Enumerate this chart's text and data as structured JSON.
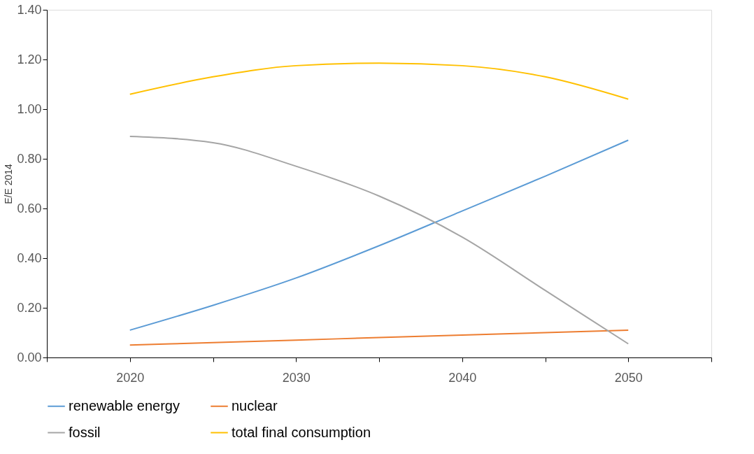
{
  "chart_data": {
    "type": "line",
    "ylabel": "E/E 2014",
    "x": [
      2020,
      2025,
      2030,
      2035,
      2040,
      2045,
      2050
    ],
    "series": [
      {
        "name": "renewable energy",
        "color": "#5b9bd5",
        "values": [
          0.11,
          0.21,
          0.32,
          0.45,
          0.59,
          0.73,
          0.875
        ]
      },
      {
        "name": "nuclear",
        "color": "#ed7d31",
        "values": [
          0.05,
          0.06,
          0.07,
          0.08,
          0.09,
          0.1,
          0.11
        ]
      },
      {
        "name": "fossil",
        "color": "#a5a5a5",
        "values": [
          0.89,
          0.865,
          0.77,
          0.65,
          0.485,
          0.27,
          0.055
        ]
      },
      {
        "name": "total final consumption",
        "color": "#ffc000",
        "values": [
          1.06,
          1.13,
          1.175,
          1.185,
          1.175,
          1.13,
          1.04
        ]
      }
    ],
    "xlim": [
      2015,
      2055
    ],
    "xticks": [
      {
        "value": 2015,
        "label": null
      },
      2020,
      {
        "value": 2025,
        "label": null
      },
      2030,
      {
        "value": 2035,
        "label": null
      },
      2040,
      {
        "value": 2045,
        "label": null
      },
      2050,
      {
        "value": 2055,
        "label": null
      }
    ],
    "ylim": [
      0,
      1.4
    ],
    "yticks": [
      {
        "value": 0,
        "label": "0.00"
      },
      {
        "value": 0.2,
        "label": "0.20"
      },
      {
        "value": 0.4,
        "label": "0.40"
      },
      {
        "value": 0.6,
        "label": "0.60"
      },
      {
        "value": 0.8,
        "label": "0.80"
      },
      {
        "value": 1.0,
        "label": "1.00"
      },
      {
        "value": 1.2,
        "label": "1.20"
      },
      {
        "value": 1.4,
        "label": "1.40"
      }
    ],
    "grid": false,
    "legend": "bottom",
    "marker": "none",
    "line_style": "solid"
  }
}
